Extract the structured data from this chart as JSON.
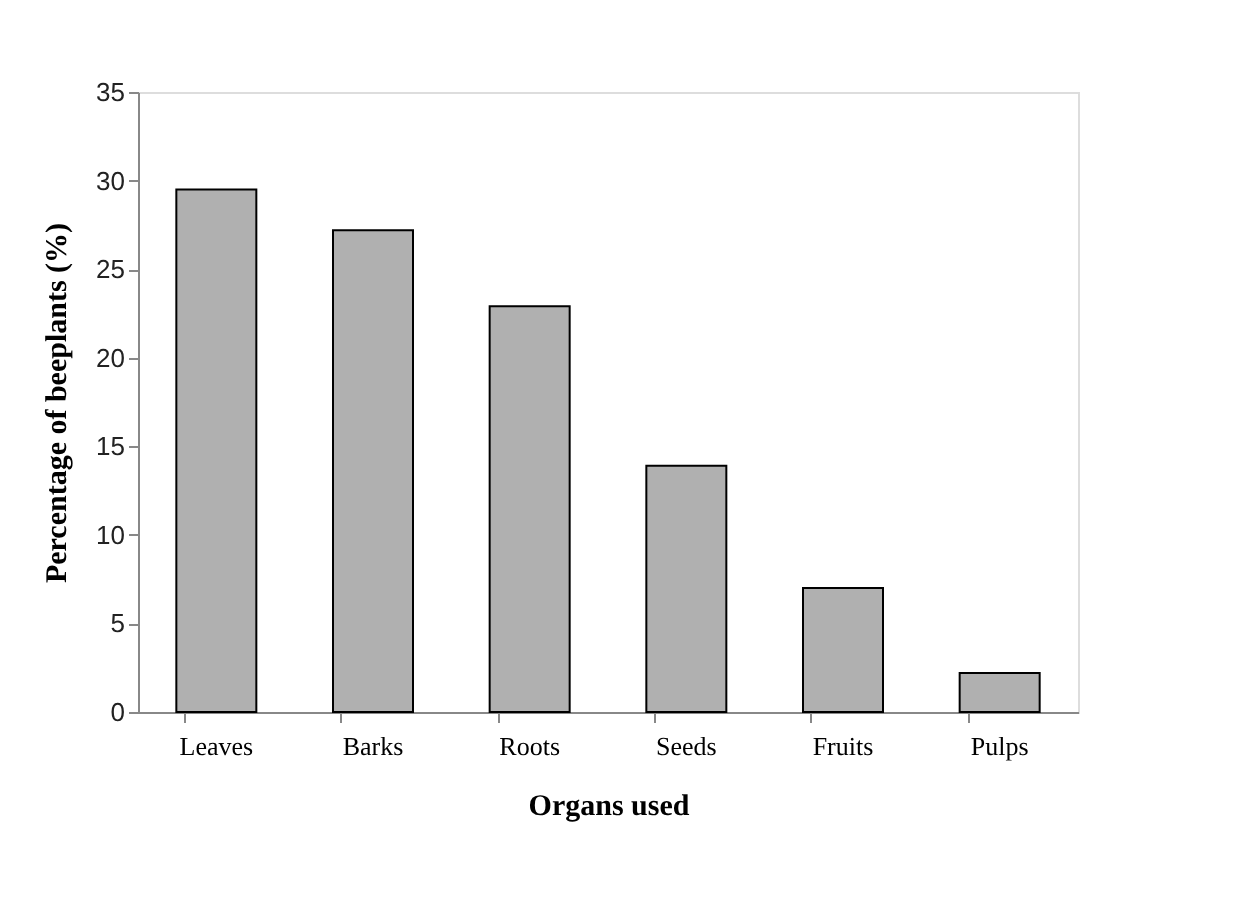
{
  "chart_data": {
    "type": "bar",
    "xlabel": "Organs used",
    "ylabel": "Percentage  of beeplants (%)",
    "categories": [
      "Leaves",
      "Barks",
      "Roots",
      "Seeds",
      "Fruits",
      "Pulps"
    ],
    "values": [
      29.5,
      27.2,
      22.9,
      13.9,
      7.0,
      2.2
    ],
    "color": "#b0b0b0",
    "ylim": [
      0,
      35
    ],
    "yticks": [
      0,
      5,
      10,
      15,
      20,
      25,
      30,
      35
    ],
    "grid": false,
    "legend": false
  }
}
